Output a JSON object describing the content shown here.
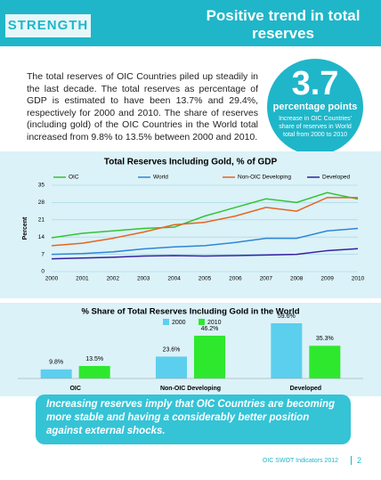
{
  "header": {
    "tag": "STRENGTH",
    "title": "Positive trend in total reserves"
  },
  "paragraph": "The total reserves of OIC Countries piled up steadily in the last decade. The total reserves as percentage of GDP is estimated to have been 13.7% and 29.4%, respectively for 2000 and 2010. The share of reserves (including gold) of the OIC Countries in the World total increased from 9.8% to 13.5% between 2000 and 2010.",
  "highlight": {
    "value": "3.7",
    "unit": "percentage points",
    "note": "Increase in OIC Countries' share of reserves in World total from 2000 to 2010"
  },
  "chart_data": [
    {
      "type": "line",
      "title": "Total Reserves Including Gold, % of GDP",
      "y_label": "Percent",
      "categories": [
        "2000",
        "2001",
        "2002",
        "2003",
        "2004",
        "2005",
        "2006",
        "2007",
        "2008",
        "2009",
        "2010"
      ],
      "series": [
        {
          "name": "OIC",
          "color": "#33c433",
          "values": [
            13.7,
            15.5,
            16.5,
            17.5,
            18,
            22.5,
            26,
            29.5,
            28,
            32,
            29.4
          ]
        },
        {
          "name": "World",
          "color": "#2f86d6",
          "values": [
            7,
            7.3,
            8,
            9.2,
            10,
            10.5,
            11.8,
            13.5,
            13.5,
            16.5,
            17.5
          ]
        },
        {
          "name": "Non-OIC Developing",
          "color": "#e8641e",
          "values": [
            10.5,
            11.5,
            13.5,
            16,
            19,
            20,
            22.5,
            26,
            24.5,
            30,
            30
          ]
        },
        {
          "name": "Developed",
          "color": "#3a1fa0",
          "values": [
            5.2,
            5.5,
            5.8,
            6.3,
            6.5,
            6.3,
            6.5,
            6.7,
            7,
            8.5,
            9.3
          ]
        }
      ],
      "ylim": [
        0,
        35
      ],
      "yticks": [
        0,
        7,
        14,
        21,
        28,
        35
      ],
      "grid": true,
      "legend": "top"
    },
    {
      "type": "bar",
      "title": "% Share of Total Reserves Including Gold in the World",
      "categories": [
        "OIC",
        "Non-OIC Developing",
        "Developed"
      ],
      "series": [
        {
          "name": "2000",
          "color": "#5ccfee",
          "values": [
            9.8,
            23.6,
            59.6
          ],
          "value_labels": [
            "9.8%",
            "23.6%",
            "59.6%"
          ]
        },
        {
          "name": "2010",
          "color": "#2ee82e",
          "values": [
            13.5,
            46.2,
            35.3
          ],
          "value_labels": [
            "13.5%",
            "46.2%",
            "35.3%"
          ]
        }
      ],
      "legend": "top"
    }
  ],
  "callout": "Increasing reserves imply that OIC Countries are becoming more stable and having a considerably better position against external shocks.",
  "footer": {
    "source": "OIC SWOT Indicators 2012",
    "page": "2"
  }
}
